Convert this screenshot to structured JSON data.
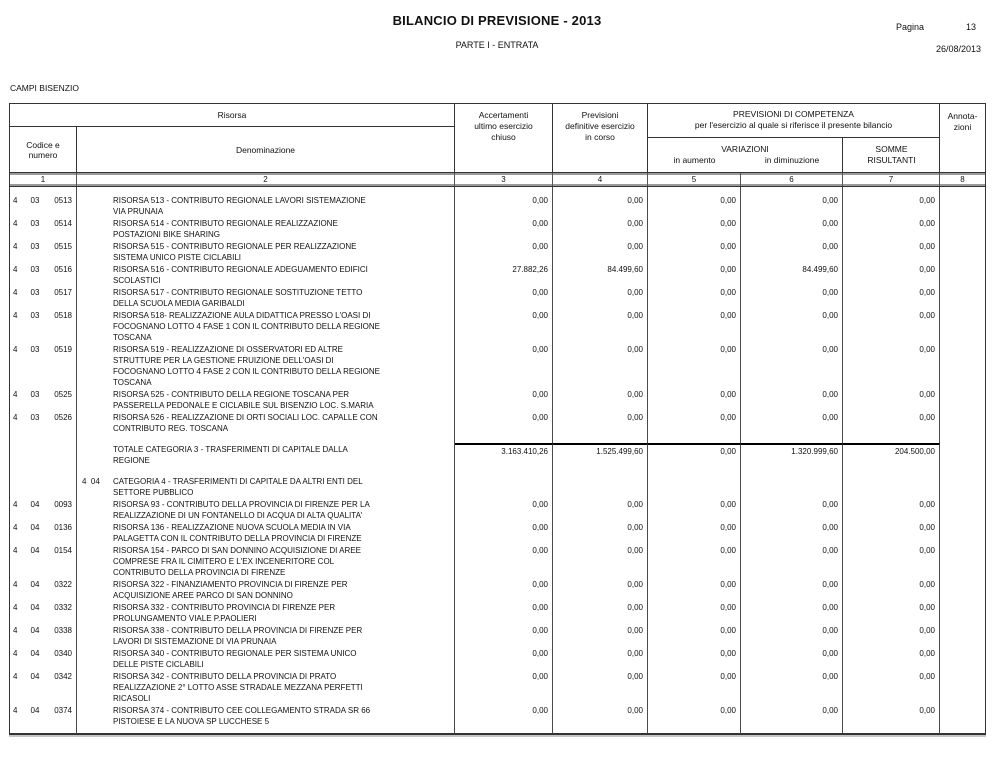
{
  "page": {
    "title": "BILANCIO DI PREVISIONE - 2013",
    "subtitle": "PARTE I - ENTRATA",
    "page_label": "Pagina",
    "page_number": "13",
    "date": "26/08/2013",
    "entity": "CAMPI BISENZIO"
  },
  "table": {
    "header": {
      "risorsa": "Risorsa",
      "codice": "Codice e\nnumero",
      "denominazione": "Denominazione",
      "accertamenti": "Accertamenti\nultimo esercizio\nchiuso",
      "previsioni": "Previsioni\ndefinitive esercizio\nin corso",
      "competenza_line1": "PREVISIONI DI COMPETENZA",
      "competenza_line2": "per l'esercizio al quale si riferisce il presente bilancio",
      "variazioni": "VARIAZIONI",
      "in_aumento": "in aumento",
      "in_diminuzione": "in diminuzione",
      "somme": "SOMME\nRISULTANTI",
      "annotazioni": "Annota-\nzioni",
      "column_numbers": [
        "1",
        "2",
        "3",
        "4",
        "5",
        "6",
        "7",
        "8"
      ]
    },
    "rows": [
      {
        "type": "resource",
        "code": [
          "4",
          "03",
          "0513"
        ],
        "text": "RISORSA 513 - CONTRIBUTO REGIONALE LAVORI SISTEMAZIONE\nVIA PRUNAIA",
        "values": [
          "0,00",
          "0,00",
          "0,00",
          "0,00",
          "0,00"
        ]
      },
      {
        "type": "resource",
        "code": [
          "4",
          "03",
          "0514"
        ],
        "text": "RISORSA 514 - CONTRIBUTO REGIONALE REALIZZAZIONE\nPOSTAZIONI BIKE SHARING",
        "values": [
          "0,00",
          "0,00",
          "0,00",
          "0,00",
          "0,00"
        ]
      },
      {
        "type": "resource",
        "code": [
          "4",
          "03",
          "0515"
        ],
        "text": "RISORSA 515 - CONTRIBUTO REGIONALE PER REALIZZAZIONE\nSISTEMA UNICO PISTE CICLABILI",
        "values": [
          "0,00",
          "0,00",
          "0,00",
          "0,00",
          "0,00"
        ]
      },
      {
        "type": "resource",
        "code": [
          "4",
          "03",
          "0516"
        ],
        "text": "RISORSA 516 - CONTRIBUTO REGIONALE ADEGUAMENTO EDIFICI\nSCOLASTICI",
        "values": [
          "27.882,26",
          "84.499,60",
          "0,00",
          "84.499,60",
          "0,00"
        ]
      },
      {
        "type": "resource",
        "code": [
          "4",
          "03",
          "0517"
        ],
        "text": "RISORSA 517 - CONTRIBUTO REGIONALE SOSTITUZIONE TETTO\nDELLA SCUOLA MEDIA GARIBALDI",
        "values": [
          "0,00",
          "0,00",
          "0,00",
          "0,00",
          "0,00"
        ]
      },
      {
        "type": "resource",
        "code": [
          "4",
          "03",
          "0518"
        ],
        "text": "RISORSA 518- REALIZZAZIONE AULA DIDATTICA PRESSO L'OASI DI\nFOCOGNANO LOTTO 4 FASE 1 CON IL CONTRIBUTO DELLA REGIONE\nTOSCANA",
        "values": [
          "0,00",
          "0,00",
          "0,00",
          "0,00",
          "0,00"
        ]
      },
      {
        "type": "resource",
        "code": [
          "4",
          "03",
          "0519"
        ],
        "text": "RISORSA 519 - REALIZZAZIONE DI OSSERVATORI ED ALTRE\nSTRUTTURE PER LA GESTIONE FRUIZIONE DELL'OASI DI\nFOCOGNANO LOTTO 4 FASE 2 CON IL CONTRIBUTO DELLA REGIONE\nTOSCANA",
        "values": [
          "0,00",
          "0,00",
          "0,00",
          "0,00",
          "0,00"
        ]
      },
      {
        "type": "resource",
        "code": [
          "4",
          "03",
          "0525"
        ],
        "text": "RISORSA 525 - CONTRIBUTO DELLA REGIONE TOSCANA PER\nPASSERELLA PEDONALE E CICLABILE SUL BISENZIO LOC. S.MARIA",
        "values": [
          "0,00",
          "0,00",
          "0,00",
          "0,00",
          "0,00"
        ]
      },
      {
        "type": "resource",
        "code": [
          "4",
          "03",
          "0526"
        ],
        "text": "RISORSA 526 - REALIZZAZIONE DI ORTI SOCIALI LOC. CAPALLE CON\nCONTRIBUTO REG. TOSCANA",
        "values": [
          "0,00",
          "0,00",
          "0,00",
          "0,00",
          "0,00"
        ]
      },
      {
        "type": "spacer"
      },
      {
        "type": "total",
        "text": "TOTALE CATEGORIA 3 - TRASFERIMENTI DI CAPITALE DALLA\nREGIONE",
        "values": [
          "3.163.410,26",
          "1.525.499,60",
          "0,00",
          "1.320.999,60",
          "204.500,00"
        ]
      },
      {
        "type": "spacer"
      },
      {
        "type": "category",
        "prefix": "4  04",
        "text": "CATEGORIA 4 - TRASFERIMENTI DI CAPITALE DA ALTRI ENTI DEL\nSETTORE PUBBLICO"
      },
      {
        "type": "resource",
        "code": [
          "4",
          "04",
          "0093"
        ],
        "text": "RISORSA 93 - CONTRIBUTO DELLA PROVINCIA DI FIRENZE PER LA\nREALIZZAZIONE DI UN FONTANELLO DI ACQUA DI ALTA QUALITA'",
        "values": [
          "0,00",
          "0,00",
          "0,00",
          "0,00",
          "0,00"
        ]
      },
      {
        "type": "resource",
        "code": [
          "4",
          "04",
          "0136"
        ],
        "text": "RISORSA 136 - REALIZZAZIONE NUOVA SCUOLA MEDIA IN VIA\nPALAGETTA CON IL CONTRIBUTO DELLA PROVINCIA DI FIRENZE",
        "values": [
          "0,00",
          "0,00",
          "0,00",
          "0,00",
          "0,00"
        ]
      },
      {
        "type": "resource",
        "code": [
          "4",
          "04",
          "0154"
        ],
        "text": "RISORSA 154 - PARCO DI SAN DONNINO ACQUISIZIONE DI AREE\nCOMPRESE FRA IL CIMITERO E L'EX INCENERITORE COL\nCONTRIBUTO DELLA PROVINCIA DI FIRENZE",
        "values": [
          "0,00",
          "0,00",
          "0,00",
          "0,00",
          "0,00"
        ]
      },
      {
        "type": "resource",
        "code": [
          "4",
          "04",
          "0322"
        ],
        "text": "RISORSA 322 - FINANZIAMENTO PROVINCIA DI FIRENZE PER\nACQUISIZIONE AREE PARCO DI SAN DONNINO",
        "values": [
          "0,00",
          "0,00",
          "0,00",
          "0,00",
          "0,00"
        ]
      },
      {
        "type": "resource",
        "code": [
          "4",
          "04",
          "0332"
        ],
        "text": "RISORSA 332 - CONTRIBUTO PROVINCIA DI FIRENZE PER\nPROLUNGAMENTO VIALE P.PAOLIERI",
        "values": [
          "0,00",
          "0,00",
          "0,00",
          "0,00",
          "0,00"
        ]
      },
      {
        "type": "resource",
        "code": [
          "4",
          "04",
          "0338"
        ],
        "text": "RISORSA 338 - CONTRIBUTO DELLA PROVINCIA DI FIRENZE PER\nLAVORI DI SISTEMAZIONE DI VIA PRUNAIA",
        "values": [
          "0,00",
          "0,00",
          "0,00",
          "0,00",
          "0,00"
        ]
      },
      {
        "type": "resource",
        "code": [
          "4",
          "04",
          "0340"
        ],
        "text": "RISORSA 340 - CONTRIBUTO REGIONALE PER SISTEMA UNICO\nDELLE PISTE CICLABILI",
        "values": [
          "0,00",
          "0,00",
          "0,00",
          "0,00",
          "0,00"
        ]
      },
      {
        "type": "resource",
        "code": [
          "4",
          "04",
          "0342"
        ],
        "text": "RISORSA 342 - CONTRIBUTO DELLA PROVINCIA DI PRATO\nREALIZZAZIONE 2° LOTTO ASSE STRADALE MEZZANA PERFETTI\nRICASOLI",
        "values": [
          "0,00",
          "0,00",
          "0,00",
          "0,00",
          "0,00"
        ]
      },
      {
        "type": "resource",
        "code": [
          "4",
          "04",
          "0374"
        ],
        "text": "RISORSA 374 - CONTRIBUTO CEE COLLEGAMENTO STRADA SR 66\nPISTOIESE E LA NUOVA SP LUCCHESE 5",
        "values": [
          "0,00",
          "0,00",
          "0,00",
          "0,00",
          "0,00"
        ]
      }
    ]
  }
}
